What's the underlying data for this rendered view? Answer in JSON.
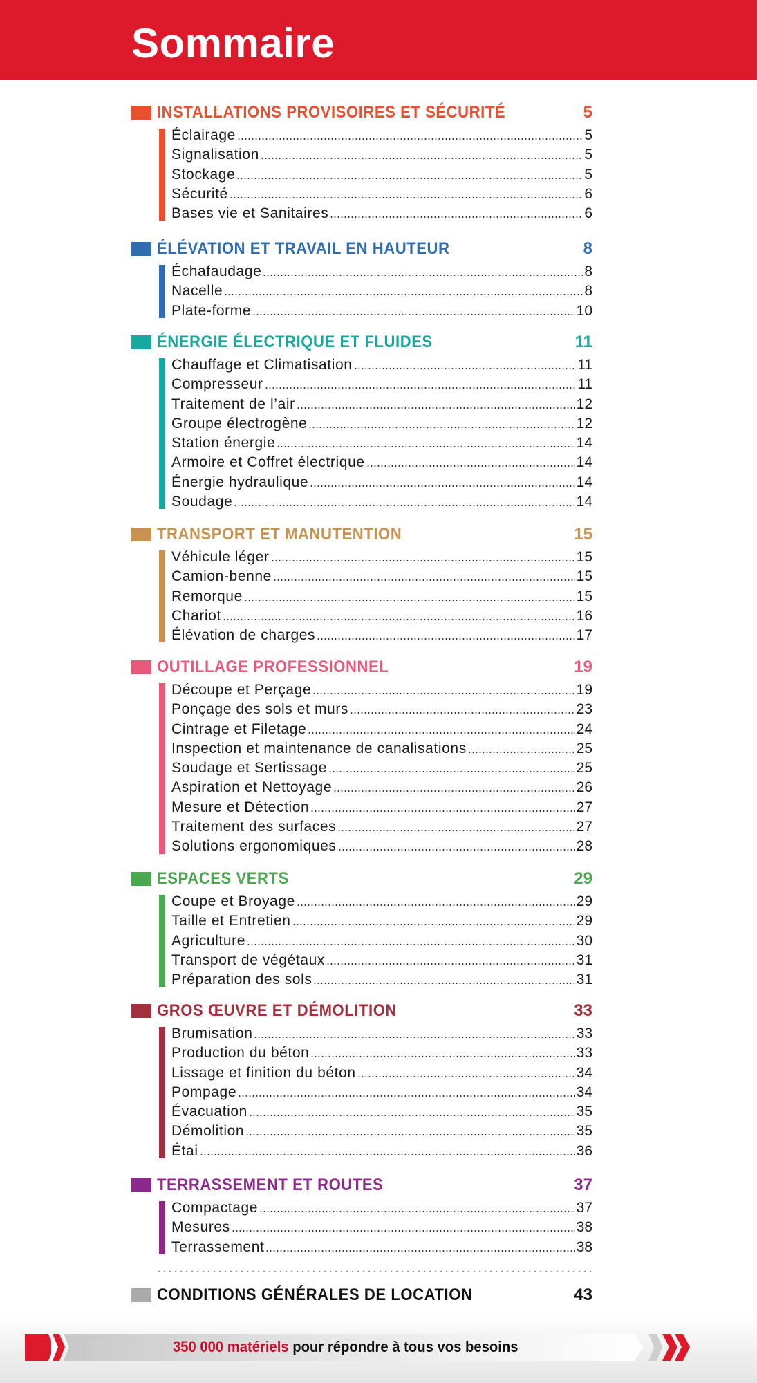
{
  "header": {
    "title": "Sommaire"
  },
  "sections": [
    {
      "title": "INSTALLATIONS PROVISOIRES ET SÉCURITÉ",
      "page": "5",
      "color": "#e8502f",
      "items": [
        {
          "label": "Éclairage",
          "page": "5"
        },
        {
          "label": "Signalisation",
          "page": "5"
        },
        {
          "label": "Stockage",
          "page": "5"
        },
        {
          "label": "Sécurité",
          "page": "6"
        },
        {
          "label": "Bases vie et Sanitaires",
          "page": "6"
        }
      ]
    },
    {
      "title": "ÉLÉVATION ET TRAVAIL EN HAUTEUR",
      "page": "8",
      "color": "#2f6db0",
      "items": [
        {
          "label": "Échafaudage",
          "page": "8"
        },
        {
          "label": "Nacelle",
          "page": "8"
        },
        {
          "label": "Plate-forme",
          "page": "10"
        }
      ]
    },
    {
      "title": "ÉNERGIE ÉLECTRIQUE ET FLUIDES",
      "page": "11",
      "color": "#14a89f",
      "items": [
        {
          "label": "Chauffage et Climatisation",
          "page": "11"
        },
        {
          "label": "Compresseur",
          "page": "11"
        },
        {
          "label": "Traitement de l’air",
          "page": "12"
        },
        {
          "label": "Groupe électrogène",
          "page": "12"
        },
        {
          "label": "Station énergie",
          "page": "14"
        },
        {
          "label": "Armoire et Coffret électrique",
          "page": "14"
        },
        {
          "label": "Énergie hydraulique",
          "page": "14"
        },
        {
          "label": "Soudage",
          "page": "14"
        }
      ]
    },
    {
      "title": "TRANSPORT ET MANUTENTION",
      "page": "15",
      "color": "#c9924e",
      "items": [
        {
          "label": "Véhicule léger",
          "page": "15"
        },
        {
          "label": "Camion-benne",
          "page": "15"
        },
        {
          "label": "Remorque",
          "page": "15"
        },
        {
          "label": "Chariot",
          "page": "16"
        },
        {
          "label": "Élévation de charges",
          "page": "17"
        }
      ]
    },
    {
      "title": "OUTILLAGE PROFESSIONNEL",
      "page": "19",
      "color": "#e8587a",
      "items": [
        {
          "label": "Découpe et Perçage",
          "page": "19"
        },
        {
          "label": "Ponçage des sols et murs",
          "page": "23"
        },
        {
          "label": "Cintrage et Filetage",
          "page": "24"
        },
        {
          "label": "Inspection et maintenance de canalisations",
          "page": "25"
        },
        {
          "label": "Soudage et Sertissage",
          "page": "25"
        },
        {
          "label": "Aspiration et Nettoyage",
          "page": "26"
        },
        {
          "label": "Mesure et Détection",
          "page": "27"
        },
        {
          "label": "Traitement des surfaces",
          "page": "27"
        },
        {
          "label": "Solutions ergonomiques",
          "page": "28"
        }
      ]
    },
    {
      "title": "ESPACES VERTS",
      "page": "29",
      "color": "#4aa84e",
      "items": [
        {
          "label": "Coupe et Broyage",
          "page": "29"
        },
        {
          "label": "Taille et Entretien",
          "page": "29"
        },
        {
          "label": "Agriculture",
          "page": "30"
        },
        {
          "label": "Transport de végétaux",
          "page": "31"
        },
        {
          "label": "Préparation des sols",
          "page": "31"
        }
      ]
    },
    {
      "title": "GROS ŒUVRE ET DÉMOLITION",
      "page": "33",
      "color": "#a3303f",
      "items": [
        {
          "label": "Brumisation",
          "page": "33"
        },
        {
          "label": "Production du béton",
          "page": "33"
        },
        {
          "label": "Lissage et finition du béton",
          "page": "34"
        },
        {
          "label": "Pompage",
          "page": "34"
        },
        {
          "label": "Évacuation",
          "page": "35"
        },
        {
          "label": "Démolition",
          "page": "35"
        },
        {
          "label": "Étai",
          "page": "36"
        }
      ]
    },
    {
      "title": "TERRASSEMENT ET ROUTES",
      "page": "37",
      "color": "#8b2a8a",
      "items": [
        {
          "label": "Compactage",
          "page": "37"
        },
        {
          "label": "Mesures",
          "page": "38"
        },
        {
          "label": "Terrassement",
          "page": "38"
        }
      ]
    },
    {
      "title": "CONDITIONS GÉNÉRALES DE LOCATION",
      "page": "43",
      "color": "#aaaaaa",
      "text_color": "#111111",
      "items": []
    }
  ],
  "footer": {
    "highlight": "350 000 matériels",
    "text": " pour répondre à tous vos besoins",
    "accent": "#dc1a2c"
  }
}
